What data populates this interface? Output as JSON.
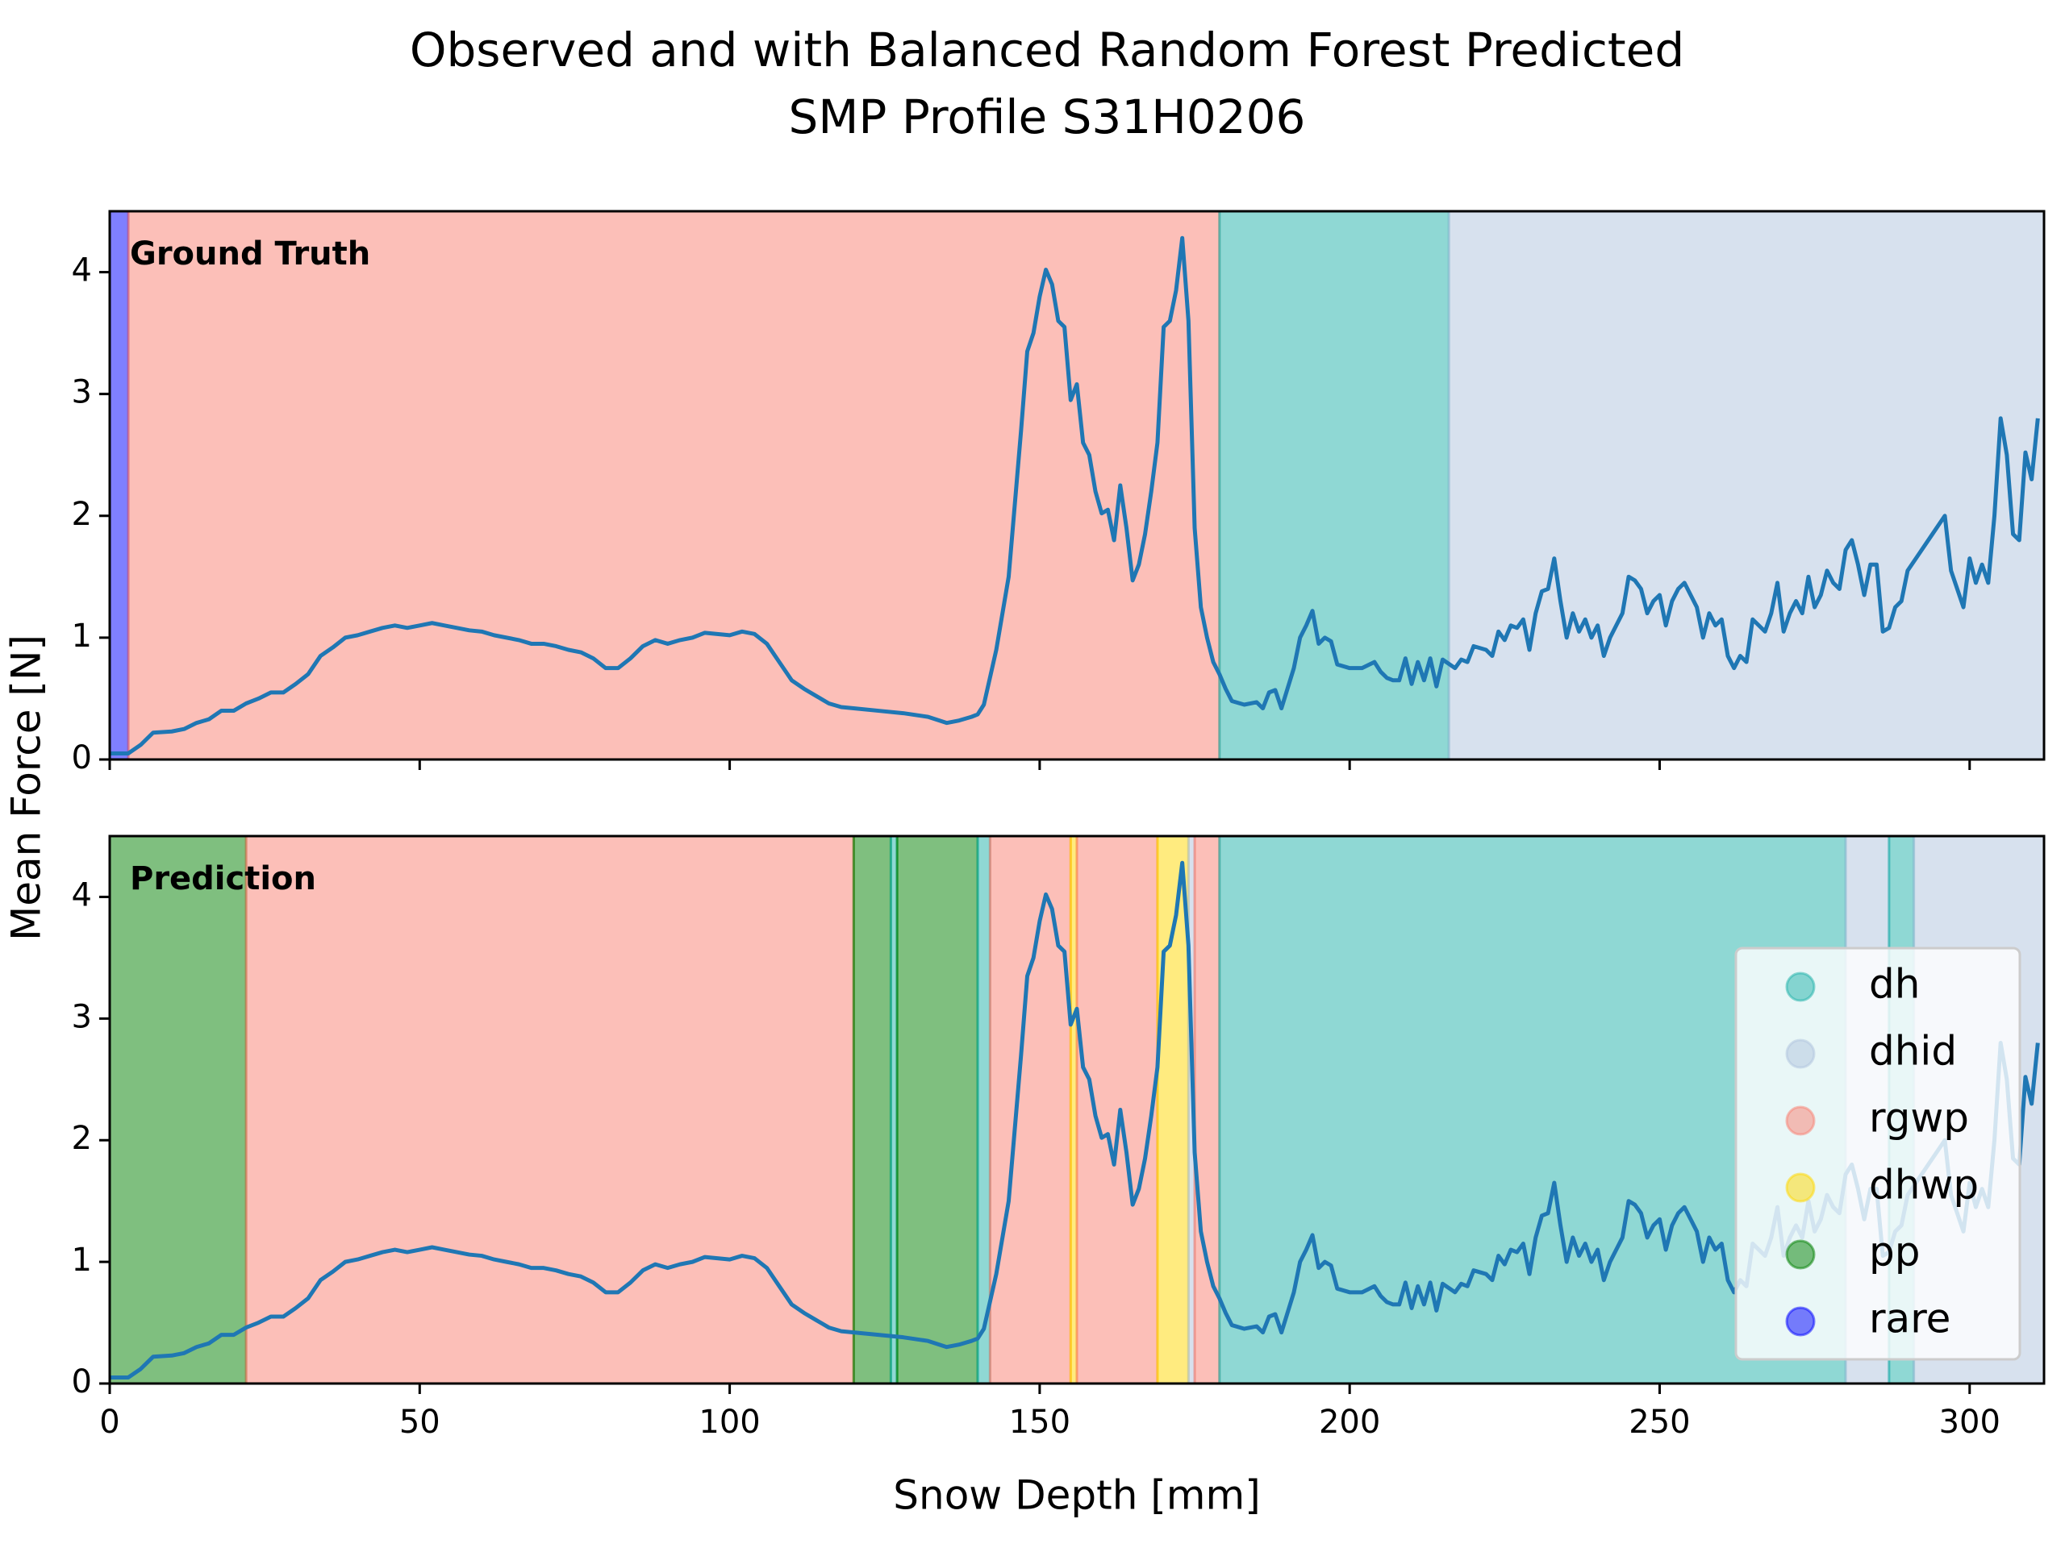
{
  "chart_data": {
    "type": "line",
    "title": "Observed and with Balanced Random Forest Predicted",
    "subtitle": "SMP Profile S31H0206",
    "xlabel": "Snow Depth [mm]",
    "ylabel": "Mean Force [N]",
    "xlim": [
      0,
      312
    ],
    "ylim": [
      0,
      4.5
    ],
    "xticks": [
      0,
      50,
      100,
      150,
      200,
      250,
      300
    ],
    "yticks": [
      0,
      1,
      2,
      3,
      4
    ],
    "color": "#1f77b4",
    "legend": "lower right",
    "classes": [
      {
        "name": "dh",
        "color": "#20b2aa"
      },
      {
        "name": "dhid",
        "color": "#b0c4de"
      },
      {
        "name": "rgwp",
        "color": "#fa8072"
      },
      {
        "name": "dhwp",
        "color": "#ffd700"
      },
      {
        "name": "pp",
        "color": "#008000"
      },
      {
        "name": "rare",
        "color": "#0000ff"
      }
    ],
    "panels": [
      {
        "label": "Ground Truth",
        "spans": [
          {
            "class": "rare",
            "start": 0,
            "end": 3
          },
          {
            "class": "rgwp",
            "start": 3,
            "end": 179
          },
          {
            "class": "dh",
            "start": 179,
            "end": 216
          },
          {
            "class": "dhid",
            "start": 216,
            "end": 312
          }
        ]
      },
      {
        "label": "Prediction",
        "spans": [
          {
            "class": "pp",
            "start": 0,
            "end": 22
          },
          {
            "class": "rgwp",
            "start": 22,
            "end": 120
          },
          {
            "class": "pp",
            "start": 120,
            "end": 126
          },
          {
            "class": "dh",
            "start": 126,
            "end": 127
          },
          {
            "class": "pp",
            "start": 127,
            "end": 140
          },
          {
            "class": "dh",
            "start": 140,
            "end": 142
          },
          {
            "class": "rgwp",
            "start": 142,
            "end": 155
          },
          {
            "class": "dhwp",
            "start": 155,
            "end": 156
          },
          {
            "class": "rgwp",
            "start": 156,
            "end": 169
          },
          {
            "class": "dhwp",
            "start": 169,
            "end": 174
          },
          {
            "class": "dhid",
            "start": 174,
            "end": 175
          },
          {
            "class": "rgwp",
            "start": 175,
            "end": 179
          },
          {
            "class": "dh",
            "start": 179,
            "end": 280
          },
          {
            "class": "dhid",
            "start": 280,
            "end": 287
          },
          {
            "class": "dh",
            "start": 287,
            "end": 291
          },
          {
            "class": "dhid",
            "start": 291,
            "end": 312
          }
        ]
      }
    ],
    "x": [
      0,
      3,
      5,
      7,
      10,
      12,
      14,
      16,
      18,
      20,
      22,
      24,
      26,
      28,
      30,
      32,
      34,
      36,
      38,
      40,
      42,
      44,
      46,
      48,
      50,
      52,
      54,
      56,
      58,
      60,
      62,
      64,
      66,
      68,
      70,
      72,
      74,
      76,
      78,
      80,
      82,
      84,
      86,
      88,
      90,
      92,
      94,
      96,
      98,
      100,
      102,
      104,
      106,
      108,
      110,
      112,
      114,
      116,
      118,
      120,
      124,
      128,
      132,
      135,
      137,
      139,
      140,
      141,
      143,
      145,
      146,
      147,
      148,
      149,
      150,
      151,
      152,
      153,
      154,
      155,
      156,
      157,
      158,
      159,
      160,
      161,
      162,
      163,
      164,
      165,
      166,
      167,
      168,
      169,
      170,
      171,
      172,
      173,
      174,
      175,
      176,
      177,
      178,
      179,
      180,
      181,
      183,
      185,
      186,
      187,
      188,
      189,
      191,
      192,
      193,
      194,
      195,
      196,
      197,
      198,
      200,
      202,
      204,
      205,
      206,
      207,
      208,
      209,
      210,
      211,
      212,
      213,
      214,
      215,
      217,
      218,
      219,
      220,
      222,
      223,
      224,
      225,
      226,
      227,
      228,
      229,
      230,
      231,
      232,
      233,
      234,
      235,
      236,
      237,
      238,
      239,
      240,
      241,
      242,
      243,
      244,
      245,
      246,
      247,
      248,
      249,
      250,
      251,
      252,
      253,
      254,
      255,
      256,
      257,
      258,
      259,
      260,
      261,
      262,
      263,
      264,
      265,
      266,
      267,
      268,
      269,
      270,
      271,
      272,
      273,
      274,
      275,
      276,
      277,
      278,
      279,
      280,
      281,
      282,
      283,
      284,
      285,
      286,
      287,
      288,
      289,
      290,
      292,
      294,
      296,
      297,
      299,
      300,
      301,
      302,
      303,
      304,
      305,
      306,
      307,
      308,
      309,
      310,
      311
    ],
    "values": [
      0.05,
      0.05,
      0.12,
      0.22,
      0.23,
      0.25,
      0.3,
      0.33,
      0.4,
      0.4,
      0.46,
      0.5,
      0.55,
      0.55,
      0.62,
      0.7,
      0.85,
      0.92,
      1.0,
      1.02,
      1.05,
      1.08,
      1.1,
      1.08,
      1.1,
      1.12,
      1.1,
      1.08,
      1.06,
      1.05,
      1.02,
      1.0,
      0.98,
      0.95,
      0.95,
      0.93,
      0.9,
      0.88,
      0.83,
      0.75,
      0.75,
      0.83,
      0.93,
      0.98,
      0.95,
      0.98,
      1.0,
      1.04,
      1.03,
      1.02,
      1.05,
      1.03,
      0.95,
      0.8,
      0.65,
      0.58,
      0.52,
      0.46,
      0.43,
      0.42,
      0.4,
      0.38,
      0.35,
      0.3,
      0.32,
      0.35,
      0.37,
      0.45,
      0.9,
      1.5,
      2.1,
      2.7,
      3.35,
      3.5,
      3.8,
      4.02,
      3.9,
      3.6,
      3.55,
      2.95,
      3.08,
      2.6,
      2.5,
      2.2,
      2.02,
      2.05,
      1.8,
      2.25,
      1.9,
      1.47,
      1.6,
      1.85,
      2.2,
      2.6,
      3.55,
      3.6,
      3.85,
      4.28,
      3.6,
      1.9,
      1.25,
      1.0,
      0.8,
      0.7,
      0.58,
      0.48,
      0.45,
      0.47,
      0.42,
      0.55,
      0.57,
      0.42,
      0.75,
      1.0,
      1.1,
      1.22,
      0.95,
      1.0,
      0.97,
      0.78,
      0.75,
      0.75,
      0.8,
      0.72,
      0.67,
      0.65,
      0.65,
      0.83,
      0.62,
      0.8,
      0.65,
      0.83,
      0.6,
      0.82,
      0.75,
      0.82,
      0.8,
      0.93,
      0.9,
      0.85,
      1.05,
      0.98,
      1.1,
      1.08,
      1.15,
      0.9,
      1.2,
      1.38,
      1.4,
      1.65,
      1.3,
      1.0,
      1.2,
      1.05,
      1.15,
      1.0,
      1.1,
      0.85,
      1.0,
      1.1,
      1.2,
      1.5,
      1.47,
      1.4,
      1.2,
      1.3,
      1.35,
      1.1,
      1.3,
      1.4,
      1.45,
      1.35,
      1.25,
      1.0,
      1.2,
      1.1,
      1.15,
      0.85,
      0.75,
      0.85,
      0.8,
      1.15,
      1.1,
      1.05,
      1.2,
      1.45,
      1.05,
      1.2,
      1.3,
      1.2,
      1.5,
      1.25,
      1.35,
      1.55,
      1.45,
      1.4,
      1.72,
      1.8,
      1.6,
      1.35,
      1.6,
      1.6,
      1.05,
      1.08,
      1.25,
      1.3,
      1.55,
      1.7,
      1.85,
      2.0,
      1.55,
      1.25,
      1.65,
      1.45,
      1.6,
      1.45,
      2.0,
      2.8,
      2.5,
      1.85,
      1.8,
      2.52,
      2.3,
      2.8
    ]
  }
}
